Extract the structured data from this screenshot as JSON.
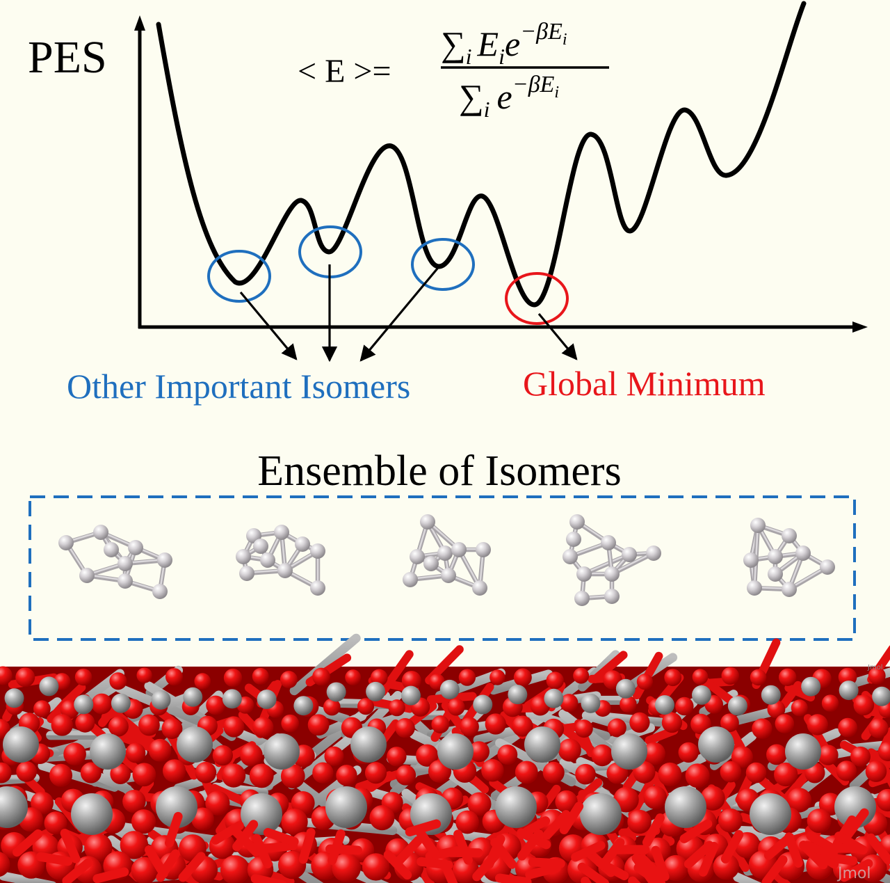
{
  "axis": {
    "y_label": "PES"
  },
  "formula": {
    "lhs": "< E >=",
    "num_sum": "∑",
    "num_sub": "i",
    "num_E": "E",
    "num_Esub": "i",
    "num_e": "e",
    "num_exp": "−βE",
    "num_expsub": "i",
    "den_sum": "∑",
    "den_sub": "i",
    "den_e": "e",
    "den_exp": "−βE",
    "den_expsub": "i"
  },
  "labels": {
    "other_isomers": "Other Important Isomers",
    "global_minimum": "Global Minimum",
    "ensemble_title": "Ensemble of Isomers",
    "jmol_top": "Jmol",
    "jmol_bottom": "Jmol"
  },
  "colors": {
    "background": "#fdfdf1",
    "curve": "#000000",
    "isomer_blue": "#1f6fbe",
    "global_red": "#e8161b",
    "cluster_atom": "#c9c5c9",
    "oxygen": "#ee1111",
    "metal": "#a8a8a8"
  },
  "isomers": {
    "count": 5
  }
}
